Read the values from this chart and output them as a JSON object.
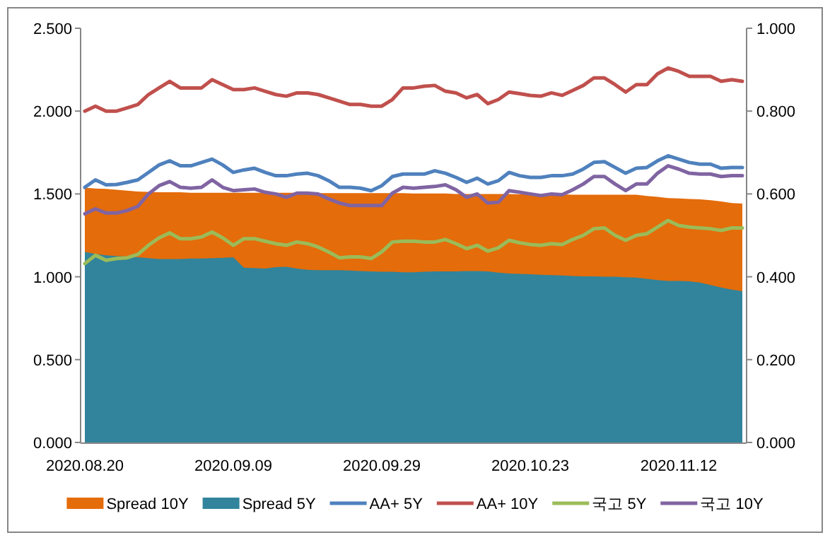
{
  "chart_data": {
    "type": "area",
    "categories": [
      "2020.08.20",
      null,
      null,
      null,
      null,
      null,
      null,
      null,
      null,
      null,
      null,
      null,
      null,
      null,
      "2020.09.09",
      null,
      null,
      null,
      null,
      null,
      null,
      null,
      null,
      null,
      null,
      null,
      null,
      null,
      "2020.09.29",
      null,
      null,
      null,
      null,
      null,
      null,
      null,
      null,
      null,
      null,
      null,
      null,
      null,
      "2020.10.23",
      null,
      null,
      null,
      null,
      null,
      null,
      null,
      null,
      null,
      null,
      null,
      null,
      null,
      "2020.11.12",
      null,
      null,
      null,
      null,
      null,
      null
    ],
    "series": [
      {
        "name": "Spread 10Y",
        "axis": "y2",
        "color": "#e46c0a",
        "values": [
          0.615,
          0.613,
          0.612,
          0.61,
          0.608,
          0.606,
          0.605,
          0.604,
          0.604,
          0.604,
          0.603,
          0.603,
          0.603,
          0.603,
          0.603,
          0.603,
          0.603,
          0.603,
          0.603,
          0.603,
          0.603,
          0.602,
          0.602,
          0.602,
          0.602,
          0.602,
          0.602,
          0.602,
          0.602,
          0.602,
          0.602,
          0.601,
          0.601,
          0.601,
          0.601,
          0.6,
          0.6,
          0.6,
          0.6,
          0.6,
          0.6,
          0.599,
          0.599,
          0.599,
          0.599,
          0.599,
          0.598,
          0.598,
          0.598,
          0.598,
          0.598,
          0.598,
          0.598,
          0.595,
          0.593,
          0.59,
          0.589,
          0.588,
          0.587,
          0.585,
          0.582,
          0.578,
          0.577
        ]
      },
      {
        "name": "Spread 5Y",
        "axis": "y2",
        "color": "#31849b",
        "values": [
          0.46,
          0.455,
          0.452,
          0.45,
          0.449,
          0.447,
          0.445,
          0.443,
          0.443,
          0.443,
          0.444,
          0.444,
          0.445,
          0.446,
          0.447,
          0.422,
          0.421,
          0.42,
          0.423,
          0.424,
          0.42,
          0.417,
          0.416,
          0.416,
          0.416,
          0.415,
          0.414,
          0.413,
          0.412,
          0.412,
          0.411,
          0.411,
          0.412,
          0.413,
          0.413,
          0.413,
          0.414,
          0.414,
          0.413,
          0.41,
          0.408,
          0.407,
          0.406,
          0.405,
          0.404,
          0.403,
          0.402,
          0.401,
          0.401,
          0.4,
          0.4,
          0.399,
          0.398,
          0.395,
          0.392,
          0.39,
          0.39,
          0.389,
          0.386,
          0.38,
          0.374,
          0.369,
          0.365
        ]
      },
      {
        "name": "AA+ 5Y",
        "type": "line",
        "color": "#4f81bd",
        "values": [
          1.54,
          1.585,
          1.555,
          1.557,
          1.57,
          1.585,
          1.63,
          1.675,
          1.7,
          1.67,
          1.67,
          1.69,
          1.71,
          1.675,
          1.63,
          1.645,
          1.655,
          1.63,
          1.61,
          1.61,
          1.62,
          1.625,
          1.61,
          1.58,
          1.54,
          1.54,
          1.535,
          1.52,
          1.55,
          1.605,
          1.62,
          1.62,
          1.62,
          1.64,
          1.625,
          1.6,
          1.57,
          1.595,
          1.56,
          1.58,
          1.63,
          1.61,
          1.6,
          1.6,
          1.61,
          1.61,
          1.62,
          1.65,
          1.69,
          1.695,
          1.66,
          1.625,
          1.655,
          1.66,
          1.7,
          1.73,
          1.71,
          1.69,
          1.68,
          1.68,
          1.655,
          1.66,
          1.66
        ]
      },
      {
        "name": "AA+ 10Y",
        "type": "line",
        "color": "#c0504d",
        "values": [
          2.0,
          2.03,
          2.0,
          2.0,
          2.02,
          2.04,
          2.1,
          2.14,
          2.18,
          2.14,
          2.14,
          2.14,
          2.19,
          2.16,
          2.13,
          2.13,
          2.14,
          2.12,
          2.1,
          2.09,
          2.11,
          2.11,
          2.1,
          2.08,
          2.06,
          2.04,
          2.04,
          2.03,
          2.03,
          2.07,
          2.14,
          2.14,
          2.15,
          2.155,
          2.12,
          2.11,
          2.08,
          2.1,
          2.045,
          2.07,
          2.115,
          2.105,
          2.095,
          2.09,
          2.11,
          2.095,
          2.125,
          2.155,
          2.2,
          2.2,
          2.16,
          2.115,
          2.16,
          2.16,
          2.225,
          2.26,
          2.24,
          2.21,
          2.21,
          2.21,
          2.18,
          2.19,
          2.18
        ]
      },
      {
        "name": "국고 5Y",
        "type": "line",
        "color": "#9bbb59",
        "values": [
          1.08,
          1.13,
          1.1,
          1.11,
          1.115,
          1.135,
          1.19,
          1.235,
          1.265,
          1.23,
          1.23,
          1.24,
          1.27,
          1.235,
          1.19,
          1.23,
          1.23,
          1.215,
          1.2,
          1.19,
          1.21,
          1.2,
          1.18,
          1.15,
          1.115,
          1.12,
          1.12,
          1.11,
          1.15,
          1.21,
          1.215,
          1.215,
          1.21,
          1.21,
          1.225,
          1.2,
          1.17,
          1.19,
          1.155,
          1.175,
          1.22,
          1.205,
          1.195,
          1.19,
          1.2,
          1.195,
          1.225,
          1.25,
          1.29,
          1.295,
          1.25,
          1.22,
          1.25,
          1.26,
          1.3,
          1.34,
          1.31,
          1.3,
          1.295,
          1.29,
          1.28,
          1.295,
          1.295
        ]
      },
      {
        "name": "국고 10Y",
        "type": "line",
        "color": "#8064a2",
        "values": [
          1.38,
          1.41,
          1.385,
          1.385,
          1.4,
          1.425,
          1.5,
          1.55,
          1.575,
          1.54,
          1.535,
          1.54,
          1.585,
          1.54,
          1.52,
          1.525,
          1.53,
          1.51,
          1.5,
          1.48,
          1.505,
          1.505,
          1.5,
          1.47,
          1.445,
          1.43,
          1.43,
          1.43,
          1.43,
          1.505,
          1.54,
          1.535,
          1.54,
          1.545,
          1.555,
          1.525,
          1.48,
          1.5,
          1.445,
          1.45,
          1.52,
          1.51,
          1.5,
          1.49,
          1.5,
          1.495,
          1.525,
          1.56,
          1.605,
          1.605,
          1.56,
          1.52,
          1.56,
          1.56,
          1.625,
          1.67,
          1.65,
          1.625,
          1.62,
          1.62,
          1.605,
          1.61,
          1.61
        ]
      }
    ],
    "ylim": [
      0,
      2.5
    ],
    "yticks": [
      {
        "value": 0,
        "label": "0.000"
      },
      {
        "value": 0.5,
        "label": "0.500"
      },
      {
        "value": 1,
        "label": "1.000"
      },
      {
        "value": 1.5,
        "label": "1.500"
      },
      {
        "value": 2,
        "label": "2.000"
      },
      {
        "value": 2.5,
        "label": "2.500"
      }
    ],
    "y2lim": [
      0,
      1
    ],
    "y2ticks": [
      {
        "value": 0,
        "label": "0.000"
      },
      {
        "value": 0.2,
        "label": "0.200"
      },
      {
        "value": 0.4,
        "label": "0.400"
      },
      {
        "value": 0.6,
        "label": "0.600"
      },
      {
        "value": 0.8,
        "label": "0.800"
      },
      {
        "value": 1,
        "label": "1.000"
      }
    ],
    "legend": "bottom"
  }
}
